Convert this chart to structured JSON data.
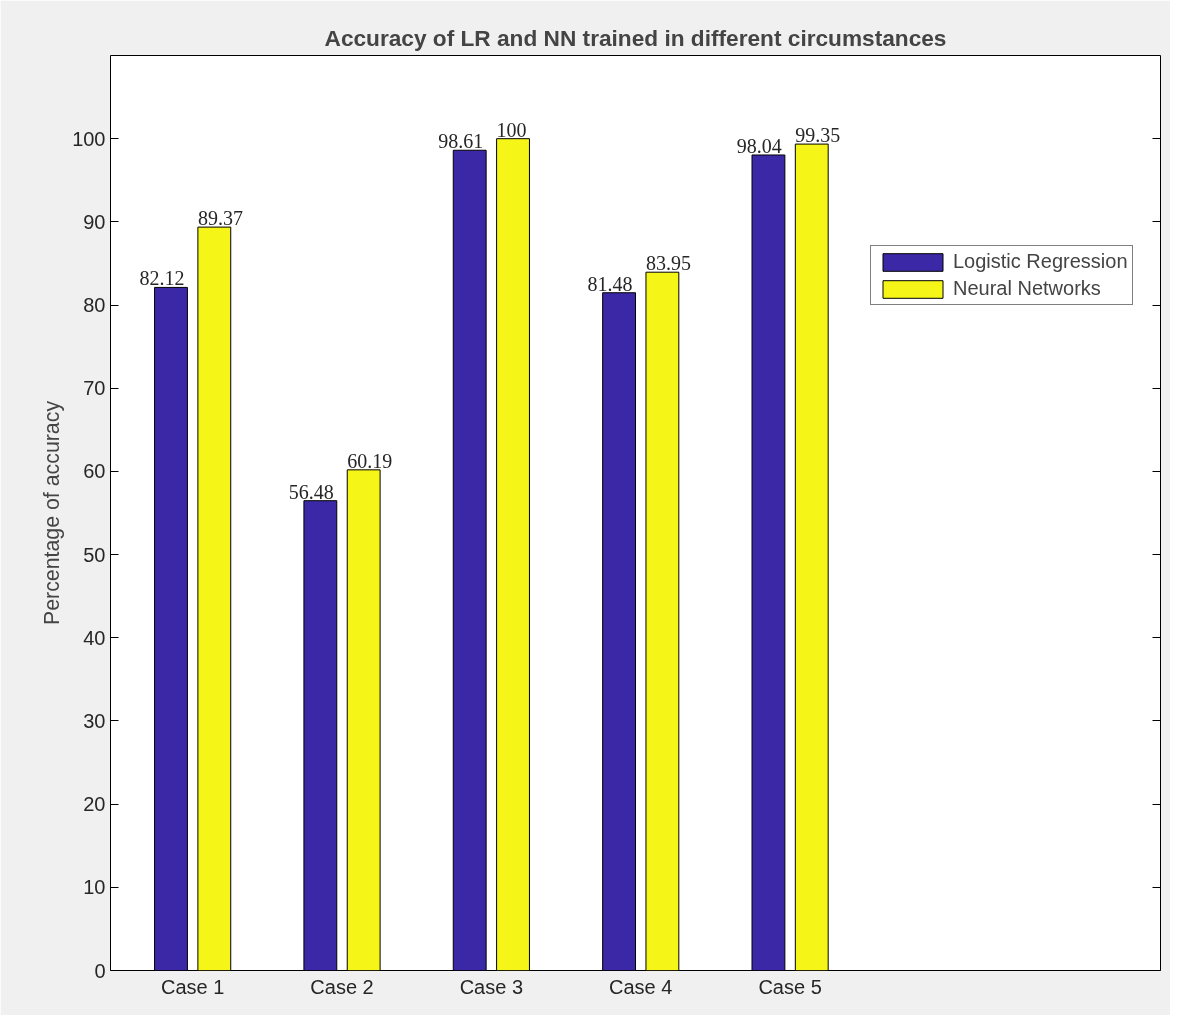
{
  "chart_data": {
    "type": "bar",
    "title": "Accuracy of LR and NN trained in different circumstances",
    "ylabel": "Percentage of accuracy",
    "categories": [
      "Case 1",
      "Case 2",
      "Case 3",
      "Case 4",
      "Case 5"
    ],
    "series": [
      {
        "name": "Logistic Regression",
        "color": "#3a28a6",
        "values": [
          82.12,
          56.48,
          98.61,
          81.48,
          98.04
        ]
      },
      {
        "name": "Neural Networks",
        "color": "#f5f518",
        "values": [
          89.37,
          60.19,
          100,
          83.95,
          99.35
        ]
      }
    ],
    "ylim": [
      0,
      110
    ],
    "yticks": [
      0,
      10,
      20,
      30,
      40,
      50,
      60,
      70,
      80,
      90,
      100
    ],
    "grid": false,
    "legend": "top right",
    "data_labels": true
  }
}
